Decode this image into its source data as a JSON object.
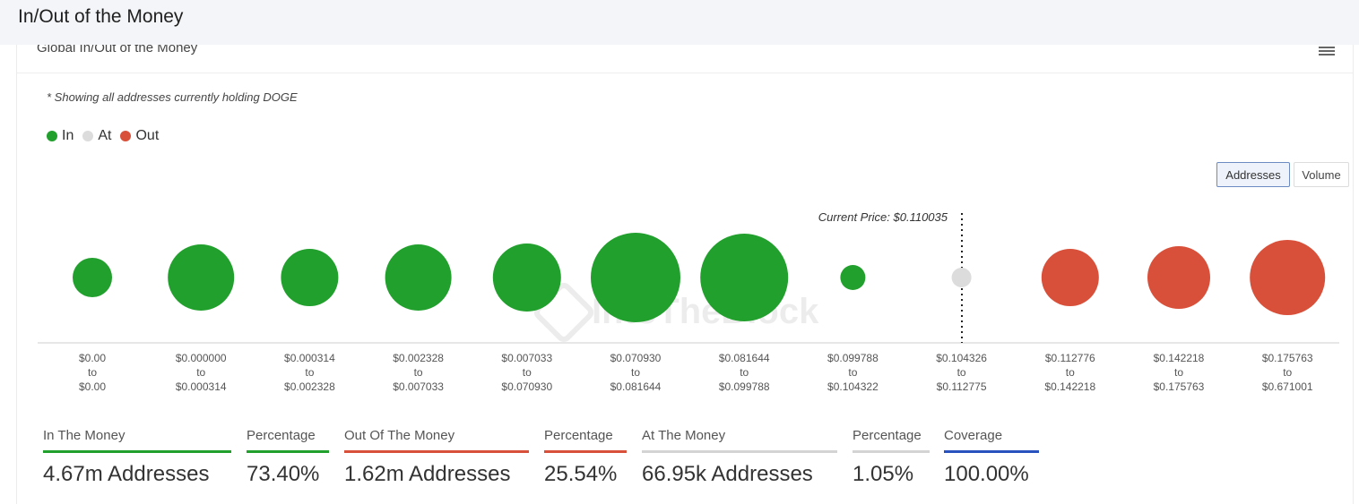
{
  "page_title": "In/Out of the Money",
  "card": {
    "header_title": "Global In/Out of the Money"
  },
  "note": "* Showing all addresses currently holding DOGE",
  "legend": [
    {
      "label": "In",
      "color": "#22a02e"
    },
    {
      "label": "At",
      "color": "#dcdcdc"
    },
    {
      "label": "Out",
      "color": "#d9503a"
    }
  ],
  "toggles": [
    {
      "label": "Addresses",
      "active": true
    },
    {
      "label": "Volume",
      "active": false
    }
  ],
  "colors": {
    "in": "#22a02e",
    "at": "#dcdcdc",
    "out": "#d9503a"
  },
  "chart_data": {
    "type": "bubble",
    "title": "",
    "current_price_label": "Current Price: $0.110035",
    "current_price": 0.110035,
    "buckets": [
      {
        "from": "$0.00",
        "to": "$0.00",
        "status": "in",
        "size": 22
      },
      {
        "from": "$0.000000",
        "to": "$0.000314",
        "status": "in",
        "size": 37
      },
      {
        "from": "$0.000314",
        "to": "$0.002328",
        "status": "in",
        "size": 32
      },
      {
        "from": "$0.002328",
        "to": "$0.007033",
        "status": "in",
        "size": 37
      },
      {
        "from": "$0.007033",
        "to": "$0.070930",
        "status": "in",
        "size": 38
      },
      {
        "from": "$0.070930",
        "to": "$0.081644",
        "status": "in",
        "size": 50
      },
      {
        "from": "$0.081644",
        "to": "$0.099788",
        "status": "in",
        "size": 49
      },
      {
        "from": "$0.099788",
        "to": "$0.104322",
        "status": "in",
        "size": 14
      },
      {
        "from": "$0.104326",
        "to": "$0.112775",
        "status": "at",
        "size": 11
      },
      {
        "from": "$0.112776",
        "to": "$0.142218",
        "status": "out",
        "size": 32
      },
      {
        "from": "$0.142218",
        "to": "$0.175763",
        "status": "out",
        "size": 35
      },
      {
        "from": "$0.175763",
        "to": "$0.671001",
        "status": "out",
        "size": 42
      }
    ],
    "range_word": "to"
  },
  "stats": [
    {
      "label": "In The Money",
      "value": "4.67m Addresses",
      "color": "#22a02e"
    },
    {
      "label": "Percentage",
      "value": "73.40%",
      "color": "#22a02e"
    },
    {
      "label": "Out Of The Money",
      "value": "1.62m Addresses",
      "color": "#d9503a"
    },
    {
      "label": "Percentage",
      "value": "25.54%",
      "color": "#d9503a"
    },
    {
      "label": "At The Money",
      "value": "66.95k Addresses",
      "color": "#d4d4d4"
    },
    {
      "label": "Percentage",
      "value": "1.05%",
      "color": "#d4d4d4"
    },
    {
      "label": "Coverage",
      "value": "100.00%",
      "color": "#2a52be"
    }
  ]
}
